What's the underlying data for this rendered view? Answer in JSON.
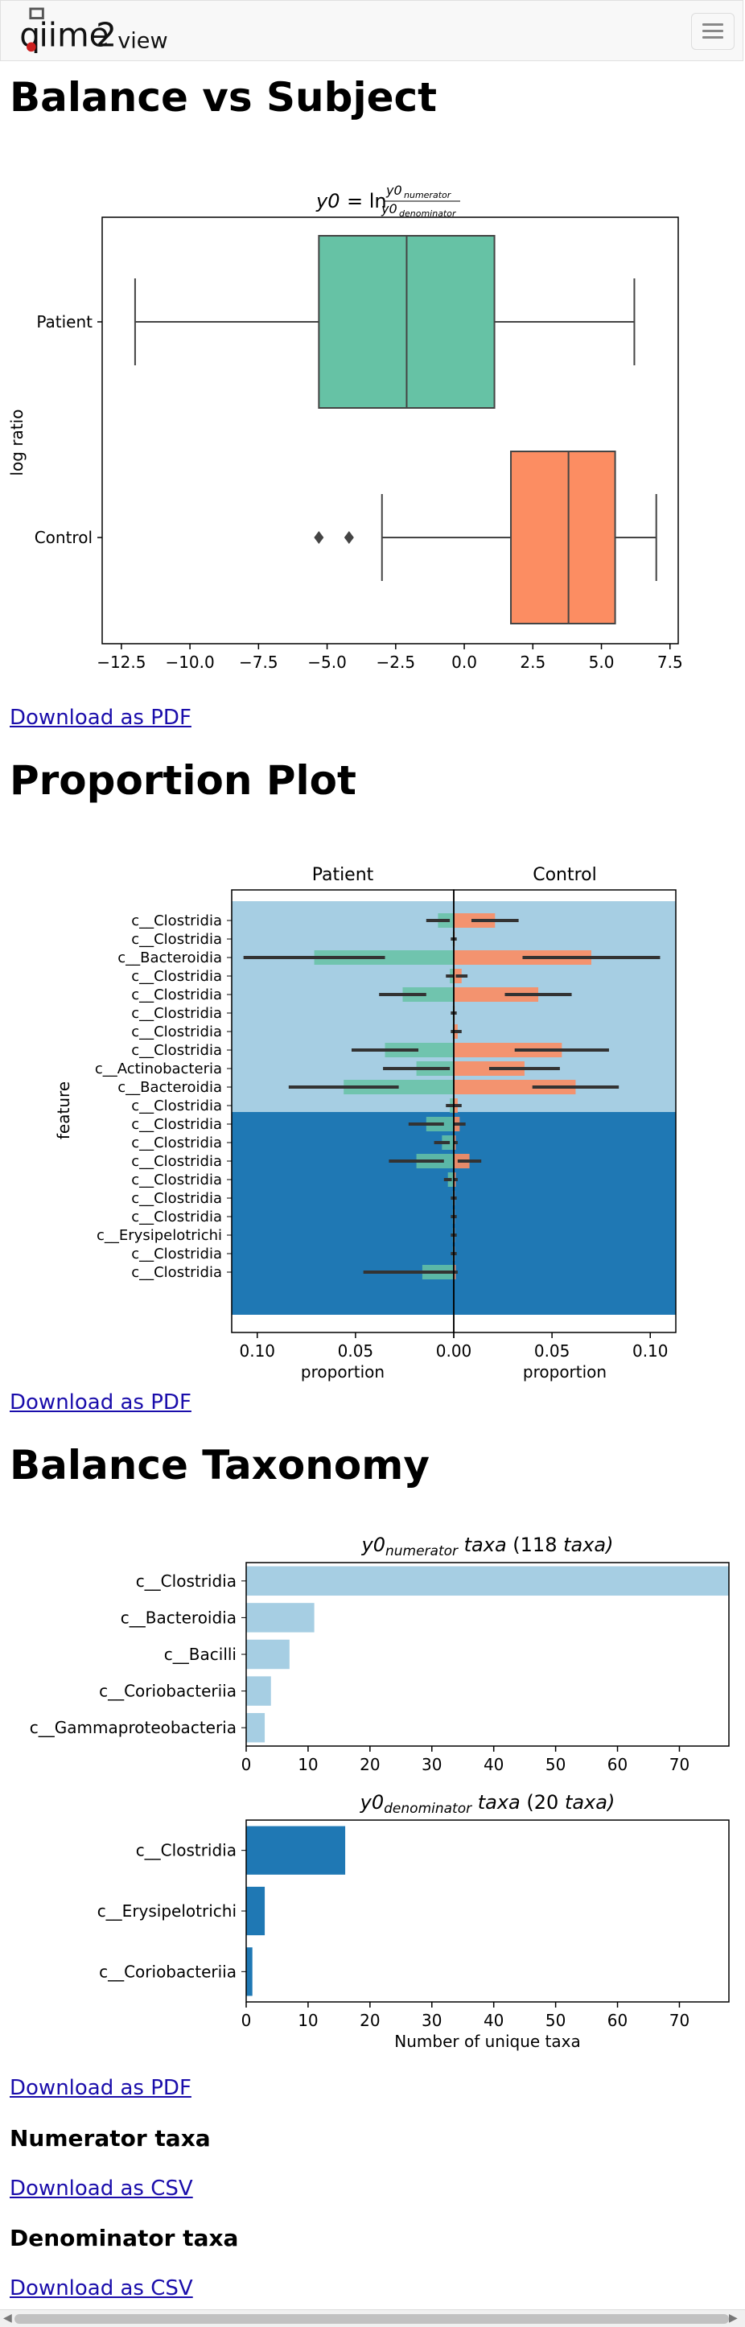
{
  "navbar": {
    "brand_q": "q",
    "brand_iime": "iime",
    "brand_2": "2",
    "brand_view": "view",
    "menu_icon": "hamburger-icon"
  },
  "sections": {
    "balance": {
      "title": "Balance vs Subject",
      "download": "Download as PDF"
    },
    "proportion": {
      "title": "Proportion Plot",
      "download": "Download as PDF"
    },
    "taxonomy": {
      "title": "Balance Taxonomy",
      "download": "Download as PDF"
    },
    "numerator": {
      "title": "Numerator taxa",
      "download": "Download as CSV"
    },
    "denominator": {
      "title": "Denominator taxa",
      "download": "Download as CSV"
    }
  },
  "colors": {
    "patient_green": "#66c2a5",
    "control_orange": "#fc8d62",
    "num_light_blue": "#a6cee3",
    "den_dark_blue": "#1f78b4",
    "link": "#1a0dab"
  },
  "chart_data": [
    {
      "type": "boxplot",
      "title": "y0 = ln y0_numerator / y0_denominator",
      "ylabel": "log ratio",
      "xlim": [
        -13.2,
        7.8
      ],
      "xticks": [
        -12.5,
        -10.0,
        -7.5,
        -5.0,
        -2.5,
        0.0,
        2.5,
        5.0,
        7.5
      ],
      "xtick_labels": [
        "−12.5",
        "−10.0",
        "−7.5",
        "−5.0",
        "−2.5",
        "0.0",
        "2.5",
        "5.0",
        "7.5"
      ],
      "orientation": "horizontal",
      "groups": [
        {
          "name": "Patient",
          "whisker_low": -12.0,
          "q1": -5.3,
          "median": -2.1,
          "q3": 1.1,
          "whisker_high": 6.2,
          "outliers": [],
          "color": "#66c2a5"
        },
        {
          "name": "Control",
          "whisker_low": -3.0,
          "q1": 1.7,
          "median": 3.8,
          "q3": 5.5,
          "whisker_high": 7.0,
          "outliers": [
            -5.3,
            -4.2
          ],
          "color": "#fc8d62"
        }
      ]
    },
    {
      "type": "bar",
      "title": "",
      "panels": [
        "Patient",
        "Control"
      ],
      "xlabel": "proportion",
      "ylabel": "feature",
      "xticks": [
        0.1,
        0.05,
        0.0
      ],
      "patient_xtick_labels": [
        "0.10",
        "0.05",
        "0.00"
      ],
      "control_xtick_labels": [
        "0.00",
        "0.05",
        "0.10"
      ],
      "xlim": [
        0,
        0.113
      ],
      "features": [
        "c__Clostridia",
        "c__Clostridia",
        "c__Bacteroidia",
        "c__Clostridia",
        "c__Clostridia",
        "c__Clostridia",
        "c__Clostridia",
        "c__Clostridia",
        "c__Actinobacteria",
        "c__Bacteroidia",
        "c__Clostridia",
        "c__Clostridia",
        "c__Clostridia",
        "c__Clostridia",
        "c__Clostridia",
        "c__Clostridia",
        "c__Clostridia",
        "c__Erysipelotrichi",
        "c__Clostridia",
        "c__Clostridia"
      ],
      "group": [
        "numerator",
        "numerator",
        "numerator",
        "numerator",
        "numerator",
        "numerator",
        "numerator",
        "numerator",
        "numerator",
        "numerator",
        "numerator",
        "denominator",
        "denominator",
        "denominator",
        "denominator",
        "denominator",
        "denominator",
        "denominator",
        "denominator",
        "denominator"
      ],
      "patient_values": [
        0.008,
        0.0005,
        0.071,
        0.002,
        0.026,
        0.0005,
        0.0005,
        0.035,
        0.019,
        0.056,
        0.002,
        0.014,
        0.006,
        0.019,
        0.003,
        0.0005,
        0.0005,
        0.0005,
        0.0005,
        0.016
      ],
      "patient_err": [
        0.006,
        0.001,
        0.036,
        0.002,
        0.012,
        0.001,
        0.001,
        0.017,
        0.017,
        0.028,
        0.002,
        0.009,
        0.004,
        0.014,
        0.002,
        0.001,
        0.001,
        0.001,
        0.001,
        0.03
      ],
      "control_values": [
        0.021,
        0.0005,
        0.07,
        0.004,
        0.043,
        0.0005,
        0.002,
        0.055,
        0.036,
        0.062,
        0.002,
        0.003,
        0.001,
        0.008,
        0.001,
        0.0005,
        0.0005,
        0.0005,
        0.0005,
        0.001
      ],
      "control_err": [
        0.012,
        0.001,
        0.035,
        0.003,
        0.017,
        0.001,
        0.002,
        0.024,
        0.018,
        0.022,
        0.002,
        0.003,
        0.001,
        0.006,
        0.001,
        0.001,
        0.001,
        0.001,
        0.001,
        0.001
      ],
      "colors": {
        "patient": "#66c2a5",
        "control": "#fc8d62",
        "numerator_bg": "#a6cee3",
        "denominator_bg": "#1f78b4"
      }
    },
    {
      "type": "bar",
      "orientation": "horizontal",
      "title_prefix": "y0",
      "title_sub": "numerator",
      "title_mid": "taxa",
      "title_count": "(118",
      "title_suffix": "taxa)",
      "categories": [
        "c__Clostridia",
        "c__Bacteroidia",
        "c__Bacilli",
        "c__Coriobacteriia",
        "c__Gammaproteobacteria"
      ],
      "values": [
        80,
        11,
        7,
        4,
        3
      ],
      "xlim": [
        0,
        78
      ],
      "xticks": [
        0,
        10,
        20,
        30,
        40,
        50,
        60,
        70
      ],
      "color": "#a6cee3"
    },
    {
      "type": "bar",
      "orientation": "horizontal",
      "title_prefix": "y0",
      "title_sub": "denominator",
      "title_mid": "taxa",
      "title_count": "(20",
      "title_suffix": "taxa)",
      "categories": [
        "c__Clostridia",
        "c__Erysipelotrichi",
        "c__Coriobacteriia"
      ],
      "values": [
        16,
        3,
        1
      ],
      "xlim": [
        0,
        78
      ],
      "xticks": [
        0,
        10,
        20,
        30,
        40,
        50,
        60,
        70
      ],
      "xlabel": "Number of unique taxa",
      "color": "#1f78b4"
    }
  ]
}
